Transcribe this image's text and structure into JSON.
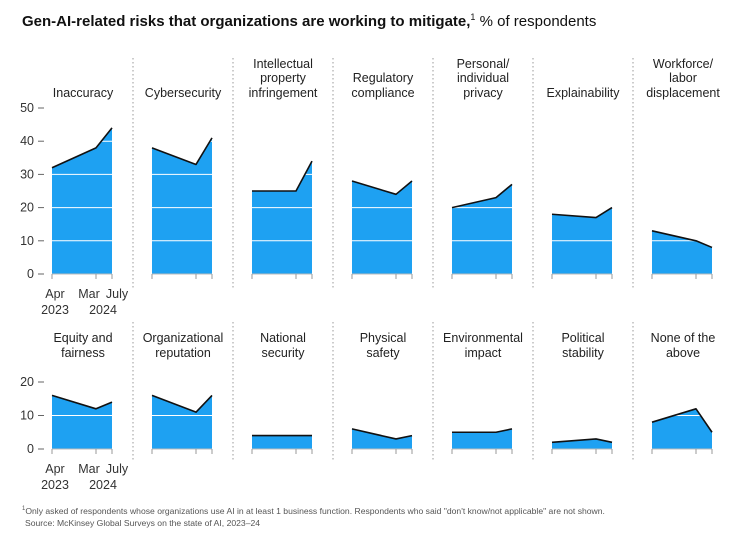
{
  "title": "Gen-AI-related risks that organizations are working to mitigate,",
  "title_note": "1",
  "subtitle": "% of respondents",
  "footnote_marker": "1",
  "footnote": "Only asked of respondents whose organizations use AI in at least 1 business function. Respondents who said \"don't know/not applicable\" are not shown.",
  "source": "Source: McKinsey Global Surveys on the state of AI, 2023–24",
  "chart_data": [
    {
      "type": "area",
      "color": "#1ea1f2",
      "line_color": "#111111",
      "grid": true,
      "x": [
        "2023-04",
        "2024-03",
        "2024-07"
      ],
      "xticks": [
        {
          "value": "2023-04",
          "label": "Apr"
        },
        {
          "value": "2024-03",
          "label": "Mar"
        },
        {
          "value": "2024-07",
          "label": "July"
        }
      ],
      "x_year_labels": [
        "2023",
        "2024"
      ],
      "ylim": [
        0,
        50
      ],
      "yticks": [
        0,
        10,
        20,
        30,
        40,
        50
      ],
      "series": [
        {
          "name": "Inaccuracy",
          "values": [
            32,
            38,
            44
          ]
        },
        {
          "name": "Cybersecurity",
          "values": [
            38,
            33,
            41
          ]
        },
        {
          "name": "Intellectual property infringement",
          "values": [
            25,
            25,
            34
          ]
        },
        {
          "name": "Regulatory compliance",
          "values": [
            28,
            24,
            28
          ]
        },
        {
          "name": "Personal/ individual privacy",
          "values": [
            20,
            23,
            27
          ]
        },
        {
          "name": "Explainability",
          "values": [
            18,
            17,
            20
          ]
        },
        {
          "name": "Workforce/ labor displacement",
          "values": [
            13,
            10,
            8
          ]
        }
      ]
    },
    {
      "type": "area",
      "color": "#1ea1f2",
      "line_color": "#111111",
      "grid": true,
      "x": [
        "2023-04",
        "2024-03",
        "2024-07"
      ],
      "xticks": [
        {
          "value": "2023-04",
          "label": "Apr"
        },
        {
          "value": "2024-03",
          "label": "Mar"
        },
        {
          "value": "2024-07",
          "label": "July"
        }
      ],
      "x_year_labels": [
        "2023",
        "2024"
      ],
      "ylim": [
        0,
        20
      ],
      "yticks": [
        0,
        10,
        20
      ],
      "series": [
        {
          "name": "Equity and fairness",
          "values": [
            16,
            12,
            14
          ]
        },
        {
          "name": "Organizational reputation",
          "values": [
            16,
            11,
            16
          ]
        },
        {
          "name": "National security",
          "values": [
            4,
            4,
            4
          ]
        },
        {
          "name": "Physical safety",
          "values": [
            6,
            3,
            4
          ]
        },
        {
          "name": "Environmental impact",
          "values": [
            5,
            5,
            6
          ]
        },
        {
          "name": "Political stability",
          "values": [
            2,
            3,
            2
          ]
        },
        {
          "name": "None of the above",
          "values": [
            8,
            12,
            5
          ]
        }
      ]
    }
  ]
}
